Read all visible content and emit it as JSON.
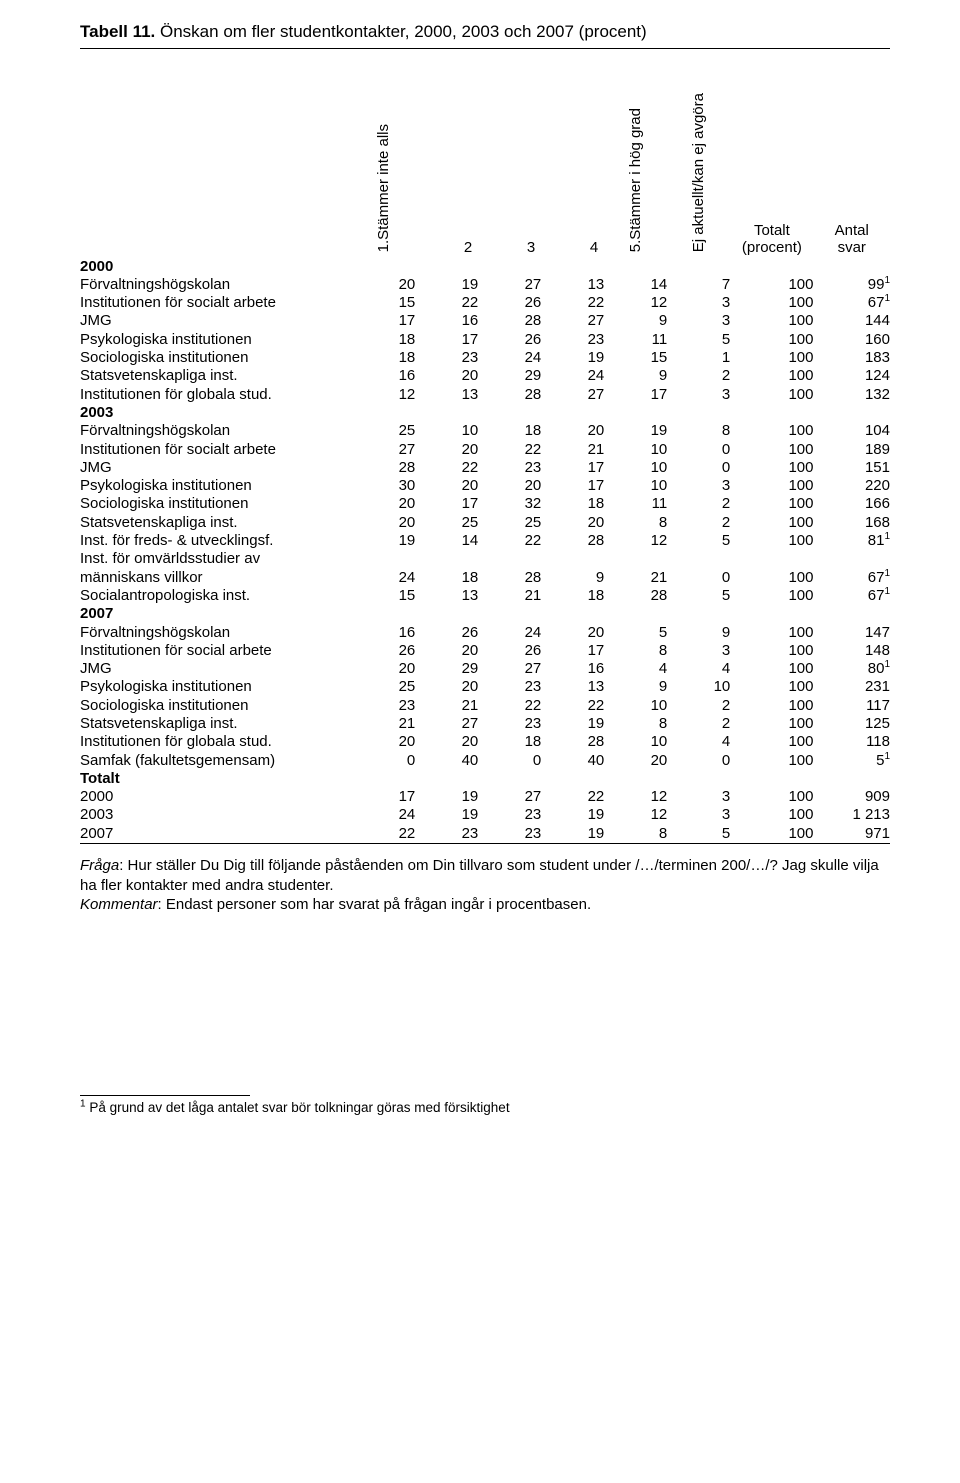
{
  "title_prefix": "Tabell 11.",
  "title_rest": " Önskan om fler studentkontakter, 2000, 2003 och 2007 (procent)",
  "headers": {
    "c1": "1.Stämmer inte alls",
    "c2": "2",
    "c3": "3",
    "c4": "4",
    "c5": "5.Stämmer i hög grad",
    "c6": "Ej aktuellt/kan ej avgöra",
    "c7a": "Totalt",
    "c7b": "(procent)",
    "c8a": "Antal",
    "c8b": "svar"
  },
  "sections": [
    {
      "label": "2000",
      "rows": [
        {
          "name": "Förvaltningshögskolan",
          "v": [
            20,
            19,
            27,
            13,
            14,
            7,
            100
          ],
          "antal": "99",
          "sup": "1"
        },
        {
          "name": "Institutionen för socialt arbete",
          "v": [
            15,
            22,
            26,
            22,
            12,
            3,
            100
          ],
          "antal": "67",
          "sup": "1"
        },
        {
          "name": "JMG",
          "v": [
            17,
            16,
            28,
            27,
            9,
            3,
            100
          ],
          "antal": "144"
        },
        {
          "name": "Psykologiska institutionen",
          "v": [
            18,
            17,
            26,
            23,
            11,
            5,
            100
          ],
          "antal": "160"
        },
        {
          "name": "Sociologiska institutionen",
          "v": [
            18,
            23,
            24,
            19,
            15,
            1,
            100
          ],
          "antal": "183"
        },
        {
          "name": "Statsvetenskapliga inst.",
          "v": [
            16,
            20,
            29,
            24,
            9,
            2,
            100
          ],
          "antal": "124"
        },
        {
          "name": "Institutionen för globala stud.",
          "v": [
            12,
            13,
            28,
            27,
            17,
            3,
            100
          ],
          "antal": "132"
        }
      ]
    },
    {
      "label": "2003",
      "rows": [
        {
          "name": "Förvaltningshögskolan",
          "v": [
            25,
            10,
            18,
            20,
            19,
            8,
            100
          ],
          "antal": "104"
        },
        {
          "name": "Institutionen för socialt arbete",
          "v": [
            27,
            20,
            22,
            21,
            10,
            0,
            100
          ],
          "antal": "189"
        },
        {
          "name": "JMG",
          "v": [
            28,
            22,
            23,
            17,
            10,
            0,
            100
          ],
          "antal": "151"
        },
        {
          "name": "Psykologiska institutionen",
          "v": [
            30,
            20,
            20,
            17,
            10,
            3,
            100
          ],
          "antal": "220"
        },
        {
          "name": "Sociologiska institutionen",
          "v": [
            20,
            17,
            32,
            18,
            11,
            2,
            100
          ],
          "antal": "166"
        },
        {
          "name": "Statsvetenskapliga inst.",
          "v": [
            20,
            25,
            25,
            20,
            8,
            2,
            100
          ],
          "antal": "168"
        },
        {
          "name": "Inst. för freds- & utvecklingsf.",
          "v": [
            19,
            14,
            22,
            28,
            12,
            5,
            100
          ],
          "antal": "81",
          "sup": "1"
        },
        {
          "name": "Inst. för omvärldsstudier av",
          "continuation": true
        },
        {
          "name": "människans villkor",
          "indent": true,
          "v": [
            24,
            18,
            28,
            9,
            21,
            0,
            100
          ],
          "antal": "67",
          "sup": "1"
        },
        {
          "name": "Socialantropologiska inst.",
          "v": [
            15,
            13,
            21,
            18,
            28,
            5,
            100
          ],
          "antal": "67",
          "sup": "1"
        }
      ]
    },
    {
      "label": "2007",
      "rows": [
        {
          "name": "Förvaltningshögskolan",
          "v": [
            16,
            26,
            24,
            20,
            5,
            9,
            100
          ],
          "antal": "147"
        },
        {
          "name": "Institutionen för social arbete",
          "v": [
            26,
            20,
            26,
            17,
            8,
            3,
            100
          ],
          "antal": "148"
        },
        {
          "name": "JMG",
          "v": [
            20,
            29,
            27,
            16,
            4,
            4,
            100
          ],
          "antal": "80",
          "sup": "1"
        },
        {
          "name": "Psykologiska institutionen",
          "v": [
            25,
            20,
            23,
            13,
            9,
            10,
            100
          ],
          "antal": "231"
        },
        {
          "name": "Sociologiska institutionen",
          "v": [
            23,
            21,
            22,
            22,
            10,
            2,
            100
          ],
          "antal": "117"
        },
        {
          "name": "Statsvetenskapliga inst.",
          "v": [
            21,
            27,
            23,
            19,
            8,
            2,
            100
          ],
          "antal": "125"
        },
        {
          "name": "Institutionen för globala stud.",
          "v": [
            20,
            20,
            18,
            28,
            10,
            4,
            100
          ],
          "antal": "118"
        },
        {
          "name": "Samfak (fakultetsgemensam)",
          "v": [
            0,
            40,
            0,
            40,
            20,
            0,
            100
          ],
          "antal": "5",
          "sup": "1"
        }
      ]
    },
    {
      "label": "Totalt",
      "rows": [
        {
          "name": "2000",
          "v": [
            17,
            19,
            27,
            22,
            12,
            3,
            100
          ],
          "antal": "909"
        },
        {
          "name": "2003",
          "v": [
            24,
            19,
            23,
            19,
            12,
            3,
            100
          ],
          "antal": "1 213"
        },
        {
          "name": "2007",
          "v": [
            22,
            23,
            23,
            19,
            8,
            5,
            100
          ],
          "antal": "971"
        }
      ]
    }
  ],
  "note": {
    "fraga_label": "Fråga",
    "fraga_text": ": Hur ställer Du Dig till följande påståenden om Din tillvaro som student under /…/terminen 200/…/? Jag skulle vilja ha fler kontakter med andra studenter.",
    "kommentar_label": "Kommentar",
    "kommentar_text": ": Endast personer som har svarat på frågan ingår i procentbasen."
  },
  "footnote": "På grund av det låga antalet svar bör tolkningar göras med försiktighet",
  "footnote_marker": "1"
}
